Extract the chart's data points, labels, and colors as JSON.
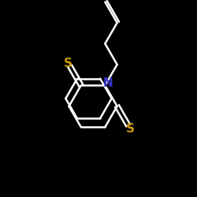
{
  "background_color": "#000000",
  "bond_color": "#ffffff",
  "S_color": "#c8960a",
  "N_color": "#3333cc",
  "label_S1": "S",
  "label_S2": "S",
  "label_N": "N",
  "figsize": [
    2.5,
    2.5
  ],
  "dpi": 100
}
